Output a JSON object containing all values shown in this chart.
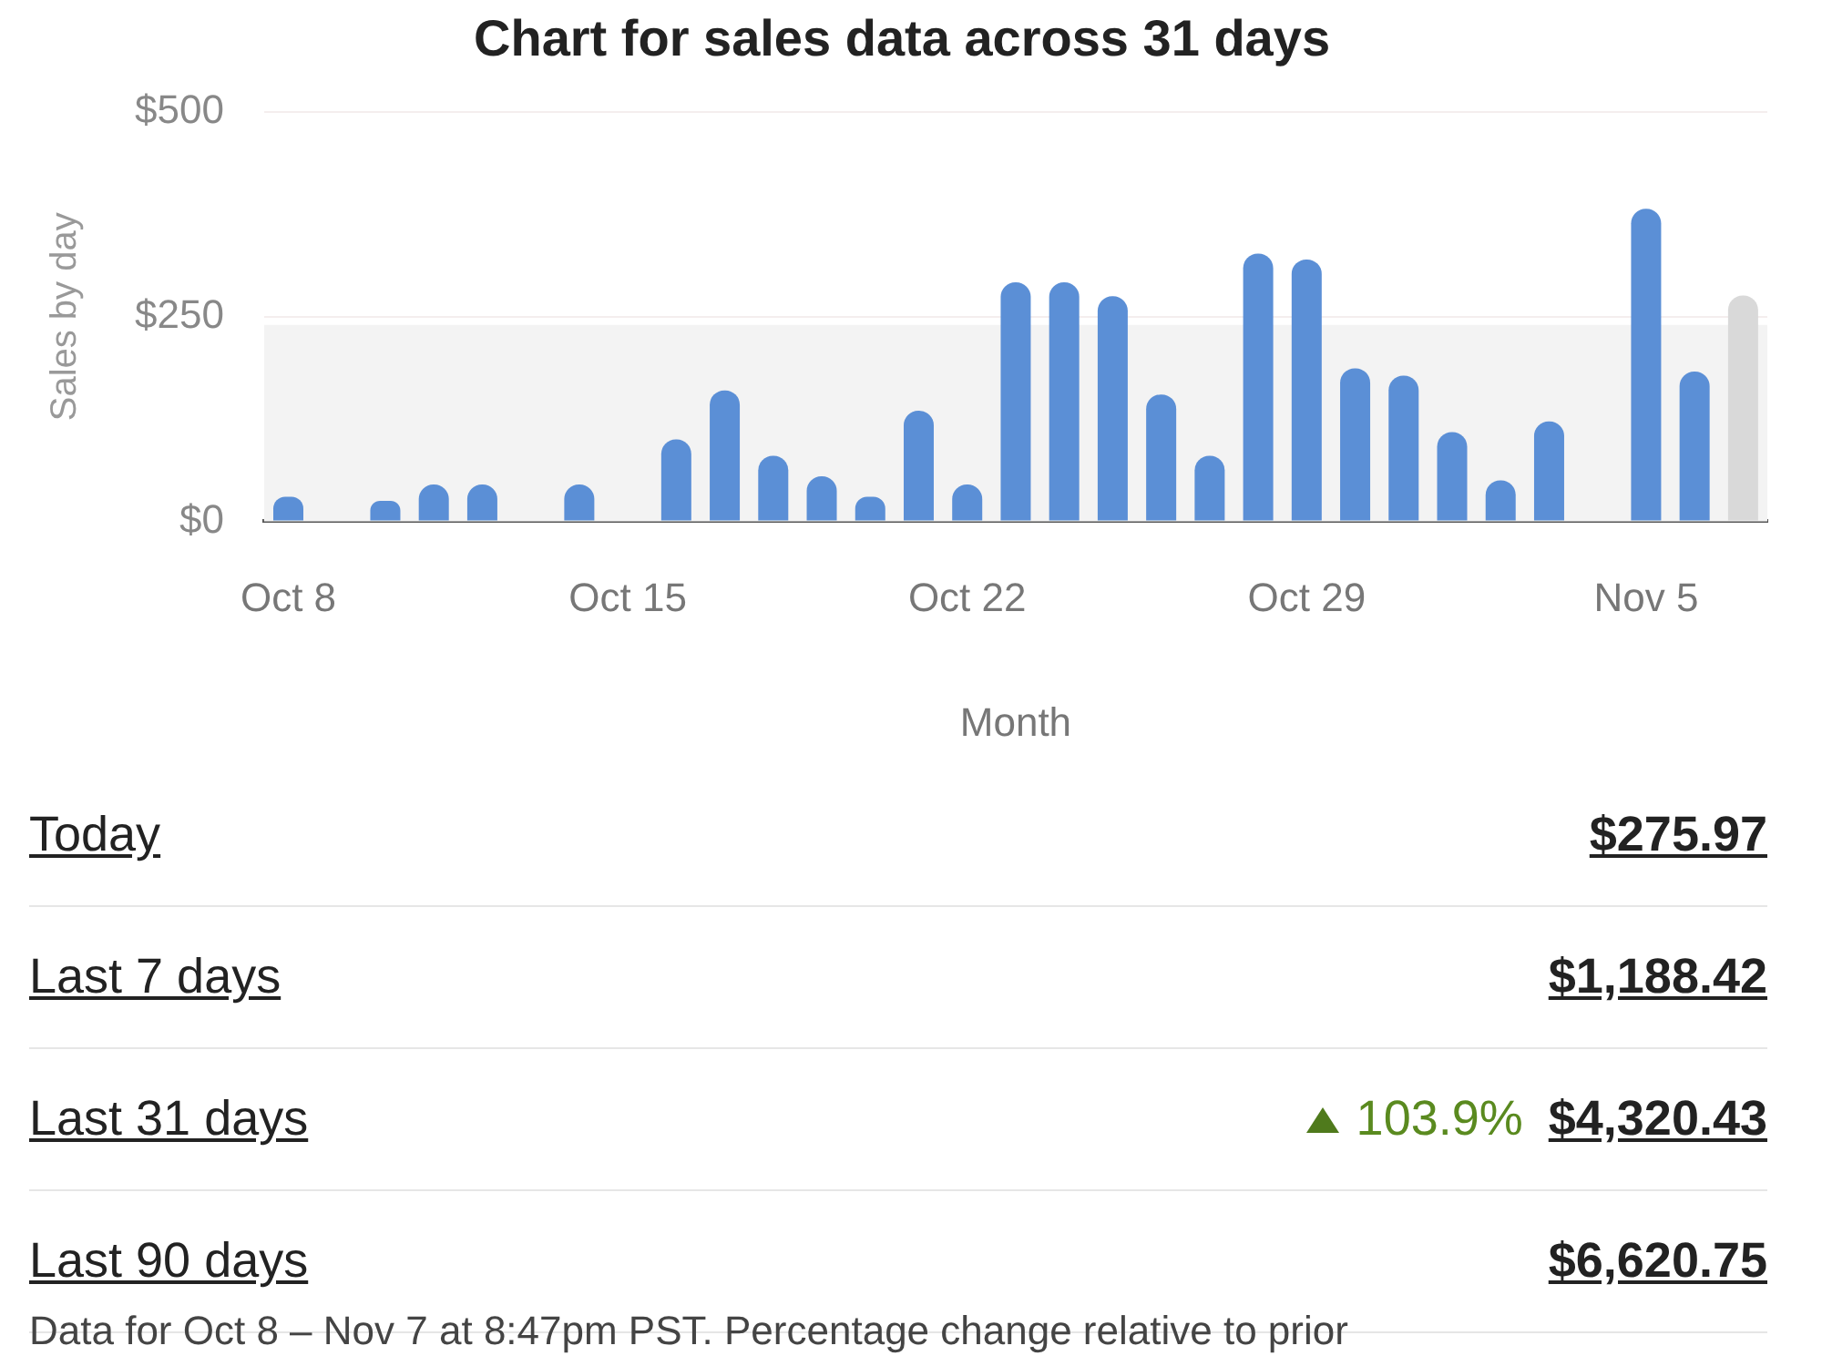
{
  "chart_data": {
    "type": "bar",
    "title": "Chart for sales data across 31 days",
    "xlabel": "Month",
    "ylabel": "Sales by day",
    "categories": [
      "Oct 8",
      null,
      null,
      null,
      null,
      null,
      null,
      "Oct 15",
      null,
      null,
      null,
      null,
      null,
      null,
      "Oct 22",
      null,
      null,
      null,
      null,
      null,
      null,
      "Oct 29",
      null,
      null,
      null,
      null,
      null,
      null,
      "Nov 5",
      null,
      null
    ],
    "values": [
      30,
      0,
      25,
      45,
      45,
      0,
      45,
      0,
      100,
      160,
      80,
      55,
      30,
      135,
      45,
      292,
      292,
      275,
      155,
      80,
      327,
      320,
      187,
      178,
      109,
      50,
      122,
      0,
      382,
      183,
      276
    ],
    "colors": [
      "#5b8fd6",
      "#5b8fd6",
      "#5b8fd6",
      "#5b8fd6",
      "#5b8fd6",
      "#5b8fd6",
      "#5b8fd6",
      "#5b8fd6",
      "#5b8fd6",
      "#5b8fd6",
      "#5b8fd6",
      "#5b8fd6",
      "#5b8fd6",
      "#5b8fd6",
      "#5b8fd6",
      "#5b8fd6",
      "#5b8fd6",
      "#5b8fd6",
      "#5b8fd6",
      "#5b8fd6",
      "#5b8fd6",
      "#5b8fd6",
      "#5b8fd6",
      "#5b8fd6",
      "#5b8fd6",
      "#5b8fd6",
      "#5b8fd6",
      "#5b8fd6",
      "#5b8fd6",
      "#5b8fd6",
      "#d9d9d9"
    ],
    "ylim": [
      0,
      500
    ],
    "yticks": [
      {
        "value": 0,
        "label": "$0"
      },
      {
        "value": 250,
        "label": "$250"
      },
      {
        "value": 500,
        "label": "$500"
      }
    ],
    "grid": "y",
    "bands": [
      {
        "axis": "y",
        "from": 0,
        "to": 240,
        "color": "#f3f3f3"
      }
    ],
    "annotations": [
      "Today",
      "$275.97",
      "Last 7 days",
      "$1,188.42",
      "Last 31 days",
      "103.9%",
      "$4,320.43",
      "Last 90 days",
      "$6,620.75",
      "Data for Oct 8 – Nov 7 at 8:47pm PST. Percentage change relative to prior"
    ]
  }
}
